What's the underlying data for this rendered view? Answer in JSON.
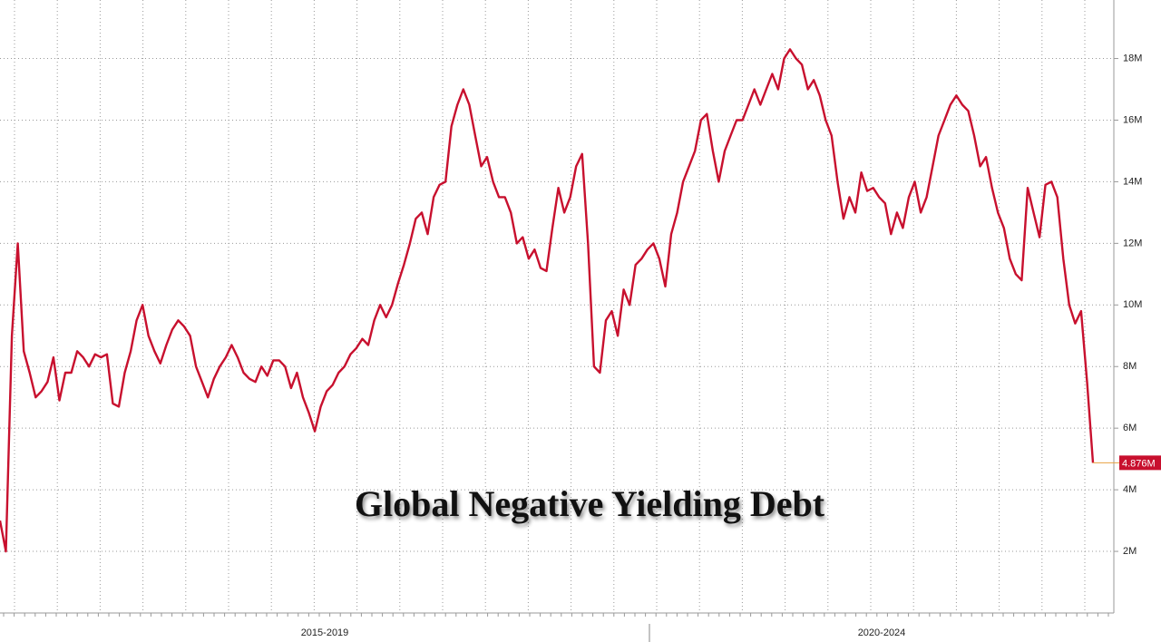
{
  "chart_data": {
    "type": "line",
    "title": "Global Negative Yielding Debt",
    "x_group_labels": [
      "2015-2019",
      "2020-2024"
    ],
    "color": "#c8102e",
    "grid": true,
    "y_axis_side": "right",
    "ylim": [
      0,
      19.9
    ],
    "yticks": [
      {
        "value": 2,
        "label": "2M"
      },
      {
        "value": 4,
        "label": "4M"
      },
      {
        "value": 6,
        "label": "6M"
      },
      {
        "value": 8,
        "label": "8M"
      },
      {
        "value": 10,
        "label": "10M"
      },
      {
        "value": 12,
        "label": "12M"
      },
      {
        "value": 14,
        "label": "14M"
      },
      {
        "value": 16,
        "label": "16M"
      },
      {
        "value": 18,
        "label": "18M"
      }
    ],
    "last_label": "4.876M",
    "values": [
      3,
      2,
      9,
      12,
      8.5,
      7.8,
      7.0,
      7.2,
      7.5,
      8.3,
      6.9,
      7.8,
      7.8,
      8.5,
      8.3,
      8.0,
      8.4,
      8.3,
      8.4,
      6.8,
      6.7,
      7.8,
      8.5,
      9.5,
      10.0,
      9.0,
      8.5,
      8.1,
      8.7,
      9.2,
      9.5,
      9.3,
      9.0,
      8.0,
      7.5,
      7.0,
      7.6,
      8.0,
      8.3,
      8.7,
      8.3,
      7.8,
      7.6,
      7.5,
      8.0,
      7.7,
      8.2,
      8.2,
      8.0,
      7.3,
      7.8,
      7.0,
      6.5,
      5.9,
      6.7,
      7.2,
      7.4,
      7.8,
      8.0,
      8.4,
      8.6,
      8.9,
      8.7,
      9.5,
      10.0,
      9.6,
      10.0,
      10.7,
      11.3,
      12.0,
      12.8,
      13.0,
      12.3,
      13.5,
      13.9,
      14.0,
      15.8,
      16.5,
      17.0,
      16.5,
      15.5,
      14.5,
      14.8,
      14.0,
      13.5,
      13.5,
      13.0,
      12.0,
      12.2,
      11.5,
      11.8,
      11.2,
      11.1,
      12.5,
      13.8,
      13.0,
      13.5,
      14.5,
      14.9,
      12.0,
      8.0,
      7.8,
      9.5,
      9.8,
      9.0,
      10.5,
      10.0,
      11.3,
      11.5,
      11.8,
      12.0,
      11.5,
      10.6,
      12.3,
      13.0,
      14.0,
      14.5,
      15.0,
      16.0,
      16.2,
      15.0,
      14.0,
      15.0,
      15.5,
      16.0,
      16.0,
      16.5,
      17.0,
      16.5,
      17.0,
      17.5,
      17.0,
      18.0,
      18.3,
      18.0,
      17.8,
      17.0,
      17.3,
      16.8,
      16.0,
      15.5,
      14.0,
      12.8,
      13.5,
      13.0,
      14.3,
      13.7,
      13.8,
      13.5,
      13.3,
      12.3,
      13.0,
      12.5,
      13.5,
      14.0,
      13.0,
      13.5,
      14.5,
      15.5,
      16.0,
      16.5,
      16.8,
      16.5,
      16.3,
      15.5,
      14.5,
      14.8,
      13.8,
      13.0,
      12.5,
      11.5,
      11.0,
      10.8,
      13.8,
      13.0,
      12.2,
      13.9,
      14.0,
      13.5,
      11.5,
      10.0,
      9.4,
      9.8,
      7.5,
      4.876
    ]
  }
}
